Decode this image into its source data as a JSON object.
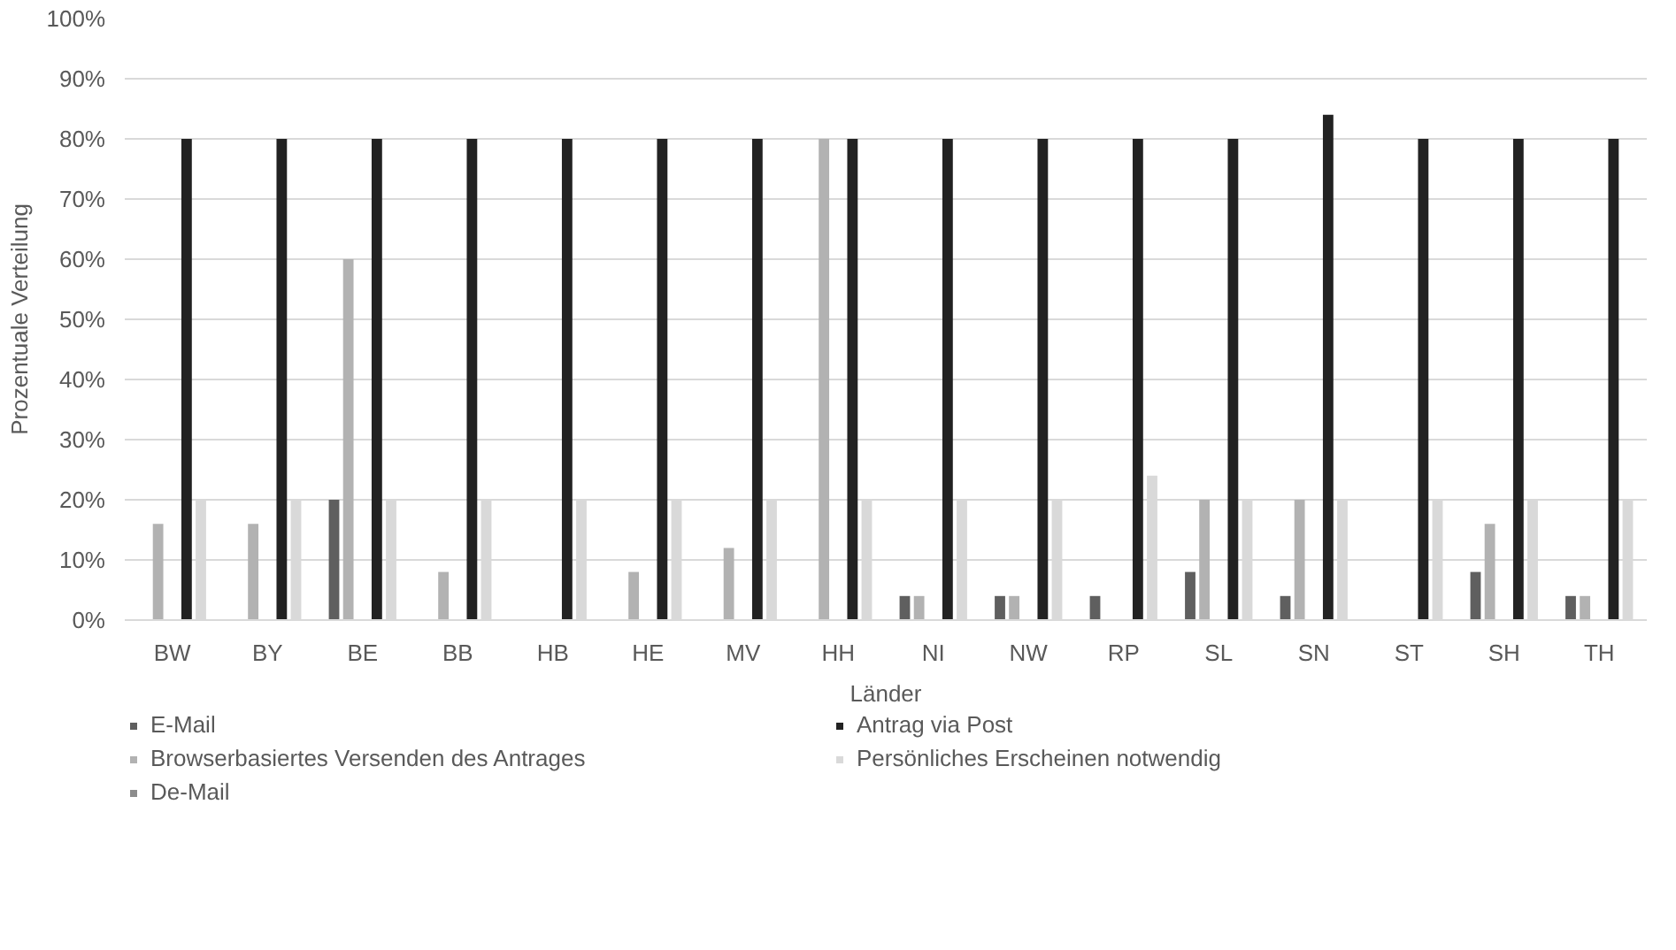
{
  "chart_data": {
    "type": "bar",
    "xlabel": "Länder",
    "ylabel": "Prozentuale Verteilung",
    "categories": [
      "BW",
      "BY",
      "BE",
      "BB",
      "HB",
      "HE",
      "MV",
      "HH",
      "NI",
      "NW",
      "RP",
      "SL",
      "SN",
      "ST",
      "SH",
      "TH"
    ],
    "series": [
      {
        "name": "E-Mail",
        "color": "#5f5f5f",
        "values": [
          0,
          0,
          20,
          0,
          0,
          0,
          0,
          0,
          4,
          4,
          4,
          8,
          4,
          0,
          8,
          4
        ]
      },
      {
        "name": "Browserbasiertes Versenden des Antrages",
        "color": "#b2b2b2",
        "values": [
          16,
          16,
          60,
          8,
          0,
          8,
          12,
          80,
          4,
          4,
          0,
          20,
          20,
          0,
          16,
          4
        ]
      },
      {
        "name": "De-Mail",
        "color": "#8c8c8c",
        "values": [
          0,
          0,
          0,
          0,
          0,
          0,
          0,
          0,
          0,
          0,
          0,
          0,
          0,
          0,
          0,
          0
        ]
      },
      {
        "name": "Antrag via Post",
        "color": "#222222",
        "values": [
          80,
          80,
          80,
          80,
          80,
          80,
          80,
          80,
          80,
          80,
          80,
          80,
          84,
          80,
          80,
          80
        ]
      },
      {
        "name": "Persönliches Erscheinen notwendig",
        "color": "#d9d9d9",
        "values": [
          20,
          20,
          20,
          20,
          20,
          20,
          20,
          20,
          20,
          20,
          24,
          20,
          20,
          20,
          20,
          20
        ]
      }
    ],
    "ylim": [
      0,
      100
    ],
    "yticks": [
      {
        "value": 0,
        "label": "0%"
      },
      {
        "value": 10,
        "label": "10%"
      },
      {
        "value": 20,
        "label": "20%"
      },
      {
        "value": 30,
        "label": "30%"
      },
      {
        "value": 40,
        "label": "40%"
      },
      {
        "value": 50,
        "label": "50%"
      },
      {
        "value": 60,
        "label": "60%"
      },
      {
        "value": 70,
        "label": "70%"
      },
      {
        "value": 80,
        "label": "80%"
      },
      {
        "value": 90,
        "label": "90%"
      },
      {
        "value": 100,
        "label": "100%"
      }
    ],
    "grid": "y",
    "legend": "bottom"
  }
}
